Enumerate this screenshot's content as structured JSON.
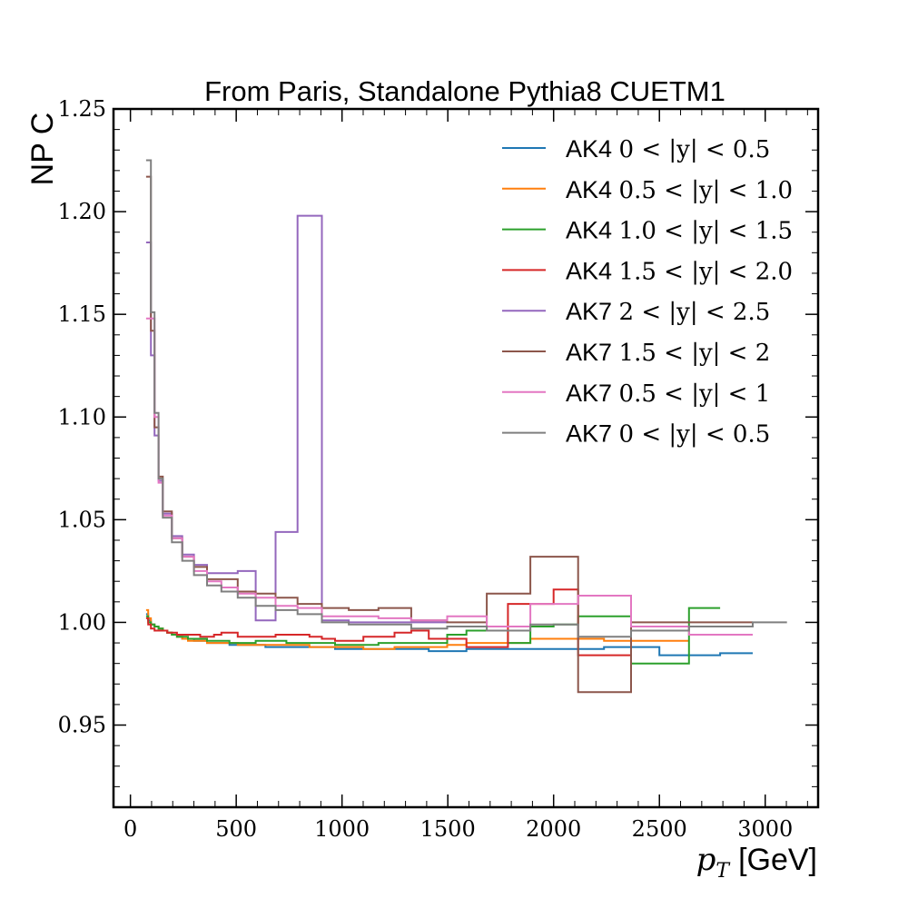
{
  "chart_data": {
    "type": "line",
    "style": "step",
    "title": "From Paris, Standalone Pythia8 CUETM1",
    "ylabel": "NP C",
    "xlabel": {
      "symbol": "p",
      "subscript": "T",
      "unit": "[GeV]"
    },
    "xlim": [
      -80,
      3250
    ],
    "ylim": [
      0.91,
      1.25
    ],
    "x_ticks": [
      0,
      500,
      1000,
      1500,
      2000,
      2500,
      3000
    ],
    "y_ticks": [
      0.95,
      1.0,
      1.05,
      1.1,
      1.15,
      1.2,
      1.25
    ],
    "y_tick_labels": [
      "0.95",
      "1.00",
      "1.05",
      "1.10",
      "1.15",
      "1.20",
      "1.25"
    ],
    "legend_position": "top-right",
    "grid": false,
    "series": [
      {
        "name": "AK4",
        "range_label": "0 < |y| < 0.5",
        "color": "#1f77b4",
        "edges": [
          74,
          84,
          97,
          114,
          133,
          153,
          174,
          196,
          220,
          245,
          272,
          300,
          330,
          362,
          395,
          430,
          468,
          507,
          548,
          592,
          638,
          686,
          737,
          790,
          846,
          905,
          967,
          1032,
          1101,
          1172,
          1248,
          1327,
          1410,
          1497,
          1588,
          1684,
          1784,
          1890,
          2000,
          2116,
          2238,
          2366,
          2500,
          2640,
          2787,
          2941
        ],
        "values": [
          1.004,
          1.001,
          0.999,
          0.998,
          0.997,
          0.996,
          0.995,
          0.994,
          0.993,
          0.992,
          0.992,
          0.991,
          0.991,
          0.99,
          0.99,
          0.99,
          0.989,
          0.989,
          0.989,
          0.989,
          0.988,
          0.988,
          0.988,
          0.988,
          0.988,
          0.988,
          0.987,
          0.987,
          0.987,
          0.987,
          0.987,
          0.987,
          0.986,
          0.986,
          0.987,
          0.987,
          0.987,
          0.987,
          0.987,
          0.987,
          0.988,
          0.988,
          0.984,
          0.984,
          0.985
        ]
      },
      {
        "name": "AK4",
        "range_label": "0.5 < |y| < 1.0",
        "color": "#ff7f0e",
        "edges": [
          74,
          84,
          97,
          114,
          133,
          153,
          174,
          196,
          220,
          245,
          272,
          300,
          330,
          362,
          395,
          430,
          468,
          507,
          548,
          592,
          638,
          686,
          737,
          790,
          846,
          905,
          967,
          1032,
          1101,
          1172,
          1248,
          1327,
          1410,
          1497,
          1588,
          1684,
          1784,
          1890,
          2000,
          2116,
          2238,
          2366,
          2500,
          2640
        ],
        "values": [
          1.006,
          1.002,
          0.999,
          0.998,
          0.997,
          0.996,
          0.995,
          0.994,
          0.993,
          0.992,
          0.991,
          0.991,
          0.991,
          0.99,
          0.99,
          0.99,
          0.99,
          0.989,
          0.989,
          0.989,
          0.989,
          0.989,
          0.989,
          0.989,
          0.988,
          0.988,
          0.988,
          0.988,
          0.987,
          0.987,
          0.988,
          0.988,
          0.988,
          0.989,
          0.99,
          0.99,
          0.99,
          0.992,
          0.992,
          0.992,
          0.991,
          0.991,
          0.991
        ]
      },
      {
        "name": "AK4",
        "range_label": "1.0 < |y| < 1.5",
        "color": "#2ca02c",
        "edges": [
          74,
          84,
          97,
          114,
          133,
          153,
          174,
          196,
          220,
          245,
          272,
          300,
          330,
          362,
          395,
          430,
          468,
          507,
          548,
          592,
          638,
          686,
          737,
          790,
          846,
          905,
          967,
          1032,
          1101,
          1172,
          1248,
          1327,
          1410,
          1497,
          1588,
          1684,
          1784,
          1890,
          2000,
          2116,
          2238,
          2366,
          2500,
          2640,
          2787
        ],
        "values": [
          1.003,
          1.0,
          0.999,
          0.998,
          0.997,
          0.996,
          0.995,
          0.994,
          0.993,
          0.993,
          0.992,
          0.992,
          0.992,
          0.991,
          0.991,
          0.991,
          0.99,
          0.99,
          0.99,
          0.991,
          0.991,
          0.991,
          0.99,
          0.99,
          0.99,
          0.99,
          0.989,
          0.989,
          0.989,
          0.99,
          0.99,
          0.99,
          0.99,
          0.994,
          0.996,
          0.996,
          0.99,
          0.998,
          0.999,
          1.003,
          1.003,
          0.98,
          0.98,
          1.007
        ]
      },
      {
        "name": "AK4",
        "range_label": "1.5 < |y| < 2.0",
        "color": "#d62728",
        "edges": [
          74,
          84,
          97,
          114,
          133,
          153,
          174,
          196,
          220,
          245,
          272,
          300,
          330,
          362,
          395,
          430,
          468,
          507,
          548,
          592,
          638,
          686,
          737,
          790,
          846,
          905,
          967,
          1032,
          1101,
          1172,
          1248,
          1327,
          1410,
          1497,
          1588,
          1684,
          1784,
          1890,
          2000,
          2116,
          2238,
          2366
        ],
        "values": [
          1.002,
          0.999,
          0.997,
          0.996,
          0.996,
          0.996,
          0.995,
          0.995,
          0.994,
          0.994,
          0.994,
          0.994,
          0.993,
          0.993,
          0.994,
          0.995,
          0.995,
          0.993,
          0.993,
          0.993,
          0.993,
          0.994,
          0.994,
          0.994,
          0.993,
          0.992,
          0.991,
          0.991,
          0.993,
          0.993,
          0.995,
          0.996,
          0.992,
          0.992,
          0.988,
          0.988,
          1.009,
          1.009,
          1.016,
          0.984,
          0.984
        ]
      },
      {
        "name": "AK7",
        "range_label": "2 < |y| < 2.5",
        "color": "#9467bd",
        "edges": [
          74,
          84,
          97,
          114,
          133,
          153,
          174,
          196,
          220,
          245,
          272,
          300,
          330,
          362,
          395,
          430,
          468,
          507,
          548,
          592,
          638,
          686,
          737,
          790,
          846,
          905,
          967,
          1032,
          1101,
          1172,
          1248,
          1327,
          1410,
          1497
        ],
        "values": [
          1.185,
          1.185,
          1.13,
          1.091,
          1.069,
          1.053,
          1.053,
          1.042,
          1.042,
          1.033,
          1.033,
          1.028,
          1.028,
          1.024,
          1.024,
          1.024,
          1.024,
          1.025,
          1.025,
          1.001,
          1.001,
          1.044,
          1.044,
          1.198,
          1.198,
          1.001,
          1.001,
          1.0,
          1.0,
          1.0,
          1.0,
          1.0,
          1.0
        ]
      },
      {
        "name": "AK7",
        "range_label": "1.5 < |y| < 2",
        "color": "#8c564b",
        "edges": [
          74,
          84,
          97,
          114,
          133,
          153,
          174,
          196,
          220,
          245,
          272,
          300,
          330,
          362,
          395,
          430,
          468,
          507,
          548,
          592,
          638,
          686,
          737,
          790,
          846,
          905,
          967,
          1032,
          1101,
          1172,
          1248,
          1327,
          1410,
          1497,
          1588,
          1684,
          1784,
          1890,
          2000,
          2116,
          2238,
          2366,
          2500,
          2640,
          2787,
          2941
        ],
        "values": [
          1.217,
          1.217,
          1.142,
          1.095,
          1.071,
          1.054,
          1.054,
          1.041,
          1.041,
          1.032,
          1.032,
          1.027,
          1.027,
          1.021,
          1.021,
          1.021,
          1.021,
          1.015,
          1.015,
          1.014,
          1.014,
          1.012,
          1.012,
          1.009,
          1.009,
          1.007,
          1.007,
          1.006,
          1.006,
          1.007,
          1.007,
          1.001,
          1.001,
          1.0,
          1.0,
          1.014,
          1.014,
          1.032,
          1.032,
          0.966,
          0.966,
          1.0,
          1.0,
          1.0,
          1.0
        ]
      },
      {
        "name": "AK7",
        "range_label": "0.5 < |y| < 1",
        "color": "#e377c2",
        "edges": [
          74,
          84,
          97,
          114,
          133,
          153,
          174,
          196,
          220,
          245,
          272,
          300,
          330,
          362,
          395,
          430,
          468,
          507,
          548,
          592,
          638,
          686,
          737,
          790,
          846,
          905,
          967,
          1032,
          1101,
          1172,
          1248,
          1327,
          1410,
          1497,
          1588,
          1684,
          1784,
          1890,
          2000,
          2116,
          2238,
          2366,
          2500,
          2640,
          2787,
          2941
        ],
        "values": [
          1.148,
          1.148,
          1.148,
          1.1,
          1.068,
          1.052,
          1.052,
          1.041,
          1.041,
          1.032,
          1.032,
          1.025,
          1.025,
          1.02,
          1.02,
          1.017,
          1.017,
          1.014,
          1.014,
          1.012,
          1.012,
          1.008,
          1.008,
          1.007,
          1.007,
          1.003,
          1.003,
          1.003,
          1.003,
          1.002,
          1.002,
          1.001,
          1.001,
          1.003,
          1.003,
          0.998,
          0.998,
          1.009,
          1.009,
          1.013,
          1.013,
          0.998,
          0.998,
          0.994,
          0.994
        ]
      },
      {
        "name": "AK7",
        "range_label": "0 < |y| < 0.5",
        "color": "#7f7f7f",
        "edges": [
          74,
          84,
          97,
          114,
          133,
          153,
          174,
          196,
          220,
          245,
          272,
          300,
          330,
          362,
          395,
          430,
          468,
          507,
          548,
          592,
          638,
          686,
          737,
          790,
          846,
          905,
          967,
          1032,
          1101,
          1172,
          1248,
          1327,
          1410,
          1497,
          1588,
          1684,
          1784,
          1890,
          2000,
          2116,
          2238,
          2366,
          2500,
          2640,
          2787,
          2941,
          3103
        ],
        "values": [
          1.225,
          1.225,
          1.151,
          1.102,
          1.07,
          1.051,
          1.051,
          1.039,
          1.039,
          1.03,
          1.03,
          1.023,
          1.023,
          1.018,
          1.018,
          1.015,
          1.015,
          1.012,
          1.012,
          1.008,
          1.008,
          1.006,
          1.006,
          1.004,
          1.004,
          1.0,
          1.0,
          0.999,
          0.999,
          0.999,
          0.999,
          0.997,
          0.997,
          0.998,
          0.998,
          0.996,
          0.996,
          0.999,
          0.999,
          0.993,
          0.993,
          0.996,
          0.996,
          0.998,
          0.998,
          1.0
        ]
      }
    ]
  }
}
